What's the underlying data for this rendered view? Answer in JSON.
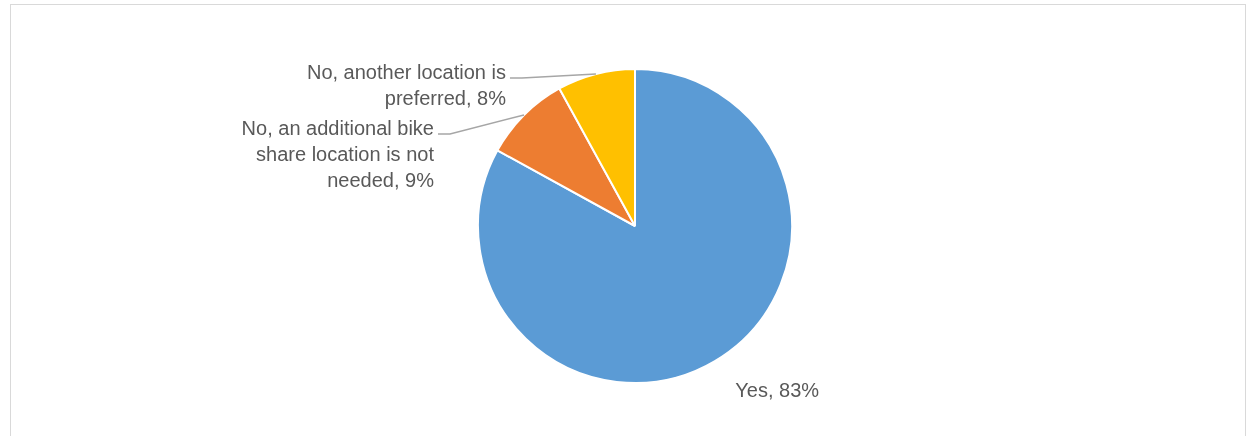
{
  "chart_data": {
    "type": "pie",
    "categories": [
      "Yes",
      "No, an additional bike share location is not needed",
      "No, another location is preferred"
    ],
    "values": [
      83,
      9,
      8
    ],
    "value_labels": [
      "83%",
      "9%",
      "8%"
    ],
    "colors": [
      "#5b9bd5",
      "#ed7d31",
      "#ffc000"
    ],
    "legend": false
  }
}
